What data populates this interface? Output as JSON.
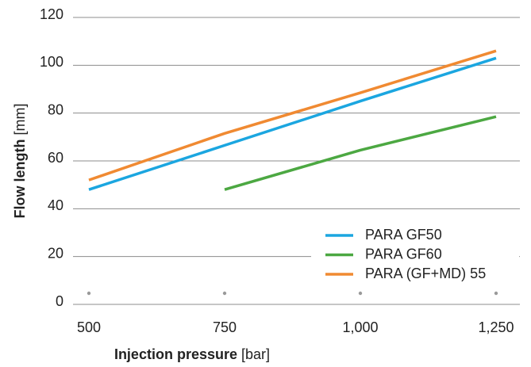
{
  "chart_data": {
    "type": "line",
    "x_label": "Injection pressure",
    "x_label_unit": "[bar]",
    "y_label": "Flow length",
    "y_label_unit": "[mm]",
    "x": [
      500,
      750,
      1000,
      1250
    ],
    "series": [
      {
        "name": "PARA GF50",
        "color": "#1ba6e0",
        "values": [
          48,
          66.5,
          85,
          103
        ]
      },
      {
        "name": "PARA GF60",
        "color": "#4ca842",
        "values": [
          null,
          48,
          64.5,
          78.5
        ]
      },
      {
        "name": "PARA (GF+MD) 55",
        "color": "#f08a32",
        "values": [
          52,
          71.5,
          88.5,
          106
        ]
      }
    ],
    "xlim": [
      500,
      1250
    ],
    "xticks": [
      500,
      750,
      {
        "value": 1000,
        "label": "1,000"
      },
      {
        "value": 1250,
        "label": "1,250"
      }
    ],
    "ylim": [
      0,
      120
    ],
    "yticks": [
      0,
      20,
      40,
      60,
      80,
      100,
      120
    ],
    "grid": true,
    "legend": "lower right"
  }
}
